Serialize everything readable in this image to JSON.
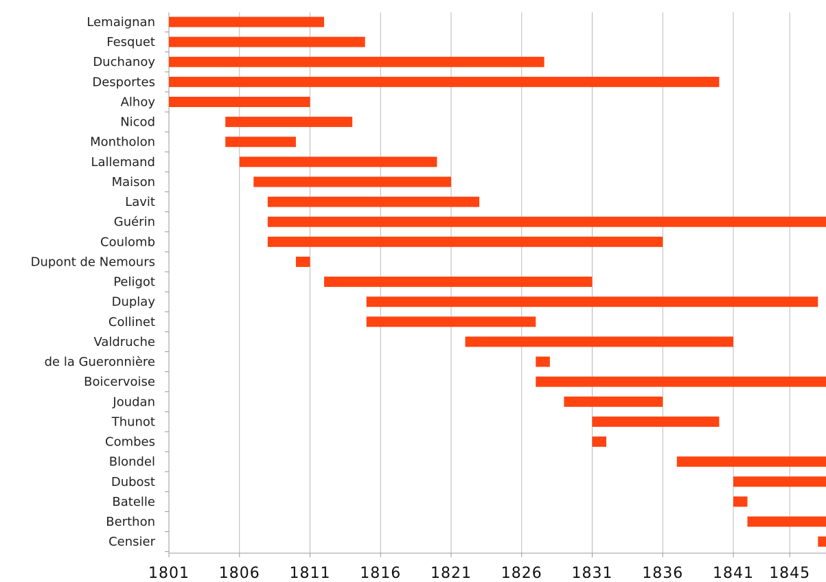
{
  "chart_data": {
    "type": "bar",
    "orientation": "horizontal-range",
    "title": "",
    "xlabel": "",
    "ylabel": "",
    "xlim": [
      1801,
      1848
    ],
    "x_ticks": [
      1801,
      1806,
      1811,
      1816,
      1821,
      1826,
      1831,
      1836,
      1841,
      1845
    ],
    "x_tick_labels": [
      "1801",
      "1806",
      "1811",
      "1816",
      "1821",
      "1826",
      "1831",
      "1836",
      "1841",
      "1845"
    ],
    "grid": "vertical",
    "bar_color": "#ff4411",
    "bars": [
      {
        "label": "Lemaignan",
        "start": 1801,
        "end": 1812
      },
      {
        "label": "Fesquet",
        "start": 1801,
        "end": 1814.9
      },
      {
        "label": "Duchanoy",
        "start": 1801,
        "end": 1827.6
      },
      {
        "label": "Desportes",
        "start": 1801,
        "end": 1840
      },
      {
        "label": "Alhoy",
        "start": 1801,
        "end": 1811
      },
      {
        "label": "Nicod",
        "start": 1805,
        "end": 1814
      },
      {
        "label": "Montholon",
        "start": 1805,
        "end": 1810
      },
      {
        "label": "Lallemand",
        "start": 1806,
        "end": 1820
      },
      {
        "label": "Maison",
        "start": 1807,
        "end": 1821
      },
      {
        "label": "Lavit",
        "start": 1808,
        "end": 1823
      },
      {
        "label": "Guérin",
        "start": 1808,
        "end": 1848
      },
      {
        "label": "Coulomb",
        "start": 1808,
        "end": 1836
      },
      {
        "label": "Dupont de Nemours",
        "start": 1810,
        "end": 1811
      },
      {
        "label": "Peligot",
        "start": 1812,
        "end": 1831
      },
      {
        "label": "Duplay",
        "start": 1815,
        "end": 1847
      },
      {
        "label": "Collinet",
        "start": 1815,
        "end": 1827
      },
      {
        "label": "Valdruche",
        "start": 1822,
        "end": 1841
      },
      {
        "label": "de la Gueronnière",
        "start": 1827,
        "end": 1828
      },
      {
        "label": "Boicervoise",
        "start": 1827,
        "end": 1848
      },
      {
        "label": "Joudan",
        "start": 1829,
        "end": 1836
      },
      {
        "label": "Thunot",
        "start": 1831,
        "end": 1840
      },
      {
        "label": "Combes",
        "start": 1831,
        "end": 1832
      },
      {
        "label": "Blondel",
        "start": 1837,
        "end": 1848
      },
      {
        "label": "Dubost",
        "start": 1841,
        "end": 1848
      },
      {
        "label": "Batelle",
        "start": 1841,
        "end": 1842
      },
      {
        "label": "Berthon",
        "start": 1842,
        "end": 1848
      },
      {
        "label": "Censier",
        "start": 1847,
        "end": 1848
      }
    ]
  }
}
